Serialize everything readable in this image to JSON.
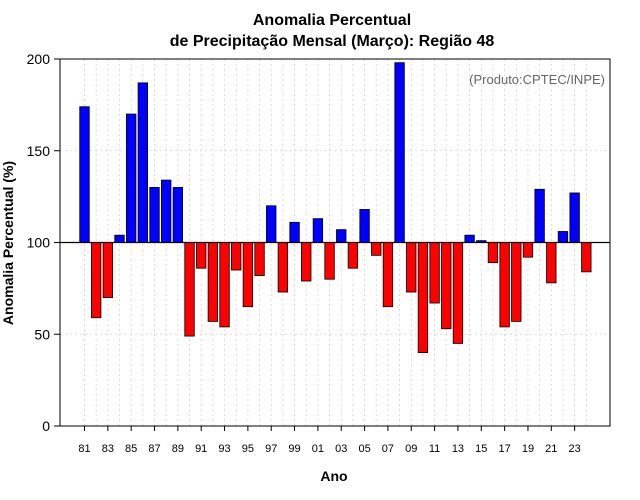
{
  "chart_data": {
    "type": "bar",
    "title_line1": "Anomalia Percentual",
    "title_line2": "de Precipitação Mensal (Março): Região 48",
    "xlabel": "Ano",
    "ylabel": "Anomalia Percentual (%)",
    "credit": "(Produto:CPTEC/INPE)",
    "ylim": [
      0,
      200
    ],
    "baseline": 100,
    "yticks": [
      0,
      50,
      100,
      150,
      200
    ],
    "grid": true,
    "categories": [
      "81",
      "82",
      "83",
      "84",
      "85",
      "86",
      "87",
      "88",
      "89",
      "90",
      "91",
      "92",
      "93",
      "94",
      "95",
      "96",
      "97",
      "98",
      "99",
      "00",
      "01",
      "02",
      "03",
      "04",
      "05",
      "06",
      "07",
      "08",
      "09",
      "10",
      "11",
      "12",
      "13",
      "14",
      "15",
      "16",
      "17",
      "18",
      "19",
      "20",
      "21",
      "22",
      "23",
      "24"
    ],
    "x_tick_labels": [
      "81",
      "83",
      "85",
      "87",
      "89",
      "91",
      "93",
      "95",
      "97",
      "99",
      "01",
      "03",
      "05",
      "07",
      "09",
      "11",
      "13",
      "15",
      "17",
      "19",
      "21",
      "23"
    ],
    "values": [
      174,
      59,
      70,
      104,
      170,
      187,
      130,
      134,
      130,
      49,
      86,
      57,
      54,
      85,
      65,
      82,
      120,
      73,
      111,
      79,
      113,
      80,
      107,
      86,
      118,
      93,
      65,
      198,
      73,
      40,
      67,
      53,
      45,
      104,
      101,
      89,
      54,
      57,
      92,
      129,
      78,
      106,
      127,
      84
    ],
    "colors": {
      "above": "#0000ff",
      "below": "#ff0000",
      "grid": "#d3d3d3",
      "axis": "#000000",
      "credit": "#666666"
    }
  }
}
